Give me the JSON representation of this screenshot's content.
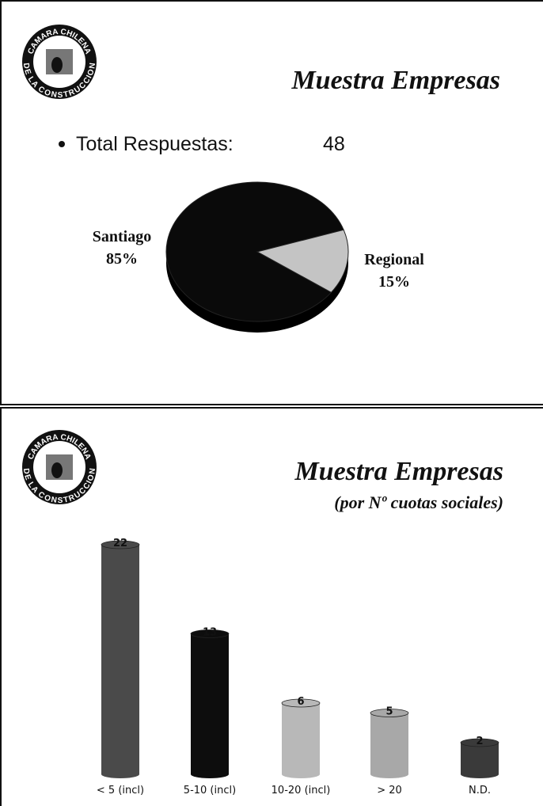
{
  "logos": [
    {
      "top": "CAMARA CHILENA",
      "bottom": "DE LA CONSTRUCCION"
    },
    {
      "top": "CAMARA CHILENA",
      "bottom": "DE LA CONSTRUCCION"
    }
  ],
  "chart_data": [
    {
      "type": "pie",
      "title": "Muestra Empresas",
      "annotation": {
        "label": "Total Respuestas:",
        "value": 48
      },
      "categories": [
        "Santiago",
        "Regional"
      ],
      "values": [
        85,
        15
      ],
      "value_labels": [
        "85%",
        "15%"
      ],
      "colors": [
        "#0a0a0a",
        "#c4c4c4"
      ]
    },
    {
      "type": "bar",
      "title": "Muestra Empresas",
      "subtitle": "(por Nº cuotas sociales)",
      "categories": [
        "< 5 (incl)",
        "5-10 (incl)",
        "10-20 (incl)",
        "> 20",
        "N.D."
      ],
      "values": [
        22,
        13,
        6,
        5,
        2
      ],
      "colors": [
        "#4a4a4a",
        "#0d0d0d",
        "#b8b8b8",
        "#a8a8a8",
        "#3a3a3a"
      ]
    }
  ]
}
